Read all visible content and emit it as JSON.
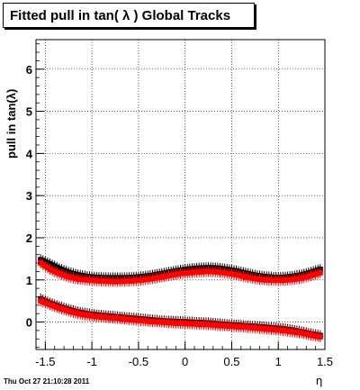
{
  "title": "Fitted pull in tan( λ )  Global Tracks",
  "timestamp": "Thu  Oct 27 21:10:28 2011",
  "chart_data": {
    "type": "scatter",
    "title": "Fitted pull in tan( λ )  Global Tracks",
    "xlabel": "η",
    "ylabel": "pull in tan(λ)",
    "xlim": [
      -1.6,
      1.5
    ],
    "ylim": [
      -0.65,
      6.7
    ],
    "xticks": [
      -1.5,
      -1,
      -0.5,
      0,
      0.5,
      1,
      1.5
    ],
    "xtick_labels": [
      "-1.5",
      "-1",
      "-0.5",
      "0",
      "0.5",
      "1",
      "1.5"
    ],
    "yticks": [
      0,
      1,
      2,
      3,
      4,
      5,
      6
    ],
    "ytick_labels": [
      "0",
      "1",
      "2",
      "3",
      "4",
      "5",
      "6"
    ],
    "grid": true,
    "colors": {
      "black_series": "#000000",
      "red_series": "#ff0000"
    },
    "series": [
      {
        "color": "#000000",
        "role": "upper-black",
        "x": [
          -1.55,
          -1.45,
          -1.35,
          -1.25,
          -1.15,
          -1.05,
          -0.95,
          -0.85,
          -0.75,
          -0.65,
          -0.55,
          -0.45,
          -0.35,
          -0.25,
          -0.15,
          -0.05,
          0.05,
          0.15,
          0.25,
          0.35,
          0.45,
          0.55,
          0.65,
          0.75,
          0.85,
          0.95,
          1.05,
          1.15,
          1.25,
          1.35,
          1.45
        ],
        "y": [
          1.48,
          1.38,
          1.27,
          1.18,
          1.12,
          1.08,
          1.06,
          1.05,
          1.05,
          1.05,
          1.06,
          1.08,
          1.11,
          1.15,
          1.19,
          1.23,
          1.26,
          1.28,
          1.29,
          1.28,
          1.25,
          1.21,
          1.16,
          1.11,
          1.08,
          1.06,
          1.06,
          1.08,
          1.12,
          1.18,
          1.25
        ]
      },
      {
        "color": "#ff0000",
        "role": "upper-red",
        "x": [
          -1.55,
          -1.45,
          -1.35,
          -1.25,
          -1.15,
          -1.05,
          -0.95,
          -0.85,
          -0.75,
          -0.65,
          -0.55,
          -0.45,
          -0.35,
          -0.25,
          -0.15,
          -0.05,
          0.05,
          0.15,
          0.25,
          0.35,
          0.45,
          0.55,
          0.65,
          0.75,
          0.85,
          0.95,
          1.05,
          1.15,
          1.25,
          1.35,
          1.45
        ],
        "y": [
          1.4,
          1.25,
          1.15,
          1.07,
          1.02,
          1.0,
          0.98,
          0.97,
          0.96,
          0.97,
          0.98,
          1.0,
          1.03,
          1.07,
          1.11,
          1.15,
          1.17,
          1.19,
          1.2,
          1.19,
          1.16,
          1.12,
          1.07,
          1.03,
          1.0,
          0.99,
          0.99,
          1.01,
          1.04,
          1.1,
          1.17
        ]
      },
      {
        "color": "#000000",
        "role": "lower-black",
        "x": [
          -1.55,
          -1.45,
          -1.35,
          -1.25,
          -1.15,
          -1.05,
          -0.95,
          -0.85,
          -0.75,
          -0.65,
          -0.55,
          -0.45,
          -0.35,
          -0.25,
          -0.15,
          -0.05,
          0.05,
          0.15,
          0.25,
          0.35,
          0.45,
          0.55,
          0.65,
          0.75,
          0.85,
          0.95,
          1.05,
          1.15,
          1.25,
          1.35,
          1.45
        ],
        "y": [
          0.55,
          0.45,
          0.37,
          0.3,
          0.24,
          0.2,
          0.17,
          0.15,
          0.13,
          0.11,
          0.09,
          0.07,
          0.05,
          0.03,
          0.02,
          0.01,
          0.0,
          -0.01,
          -0.02,
          -0.04,
          -0.06,
          -0.07,
          -0.09,
          -0.1,
          -0.12,
          -0.14,
          -0.16,
          -0.19,
          -0.23,
          -0.28,
          -0.32
        ]
      },
      {
        "color": "#ff0000",
        "role": "lower-red",
        "x": [
          -1.55,
          -1.45,
          -1.35,
          -1.25,
          -1.15,
          -1.05,
          -0.95,
          -0.85,
          -0.75,
          -0.65,
          -0.55,
          -0.45,
          -0.35,
          -0.25,
          -0.15,
          -0.05,
          0.05,
          0.15,
          0.25,
          0.35,
          0.45,
          0.55,
          0.65,
          0.75,
          0.85,
          0.95,
          1.05,
          1.15,
          1.25,
          1.35,
          1.45
        ],
        "y": [
          0.5,
          0.41,
          0.33,
          0.26,
          0.2,
          0.16,
          0.13,
          0.11,
          0.09,
          0.07,
          0.05,
          0.03,
          0.01,
          0.0,
          -0.02,
          -0.03,
          -0.04,
          -0.05,
          -0.06,
          -0.08,
          -0.09,
          -0.11,
          -0.12,
          -0.14,
          -0.16,
          -0.18,
          -0.2,
          -0.23,
          -0.26,
          -0.31,
          -0.35
        ]
      }
    ]
  }
}
